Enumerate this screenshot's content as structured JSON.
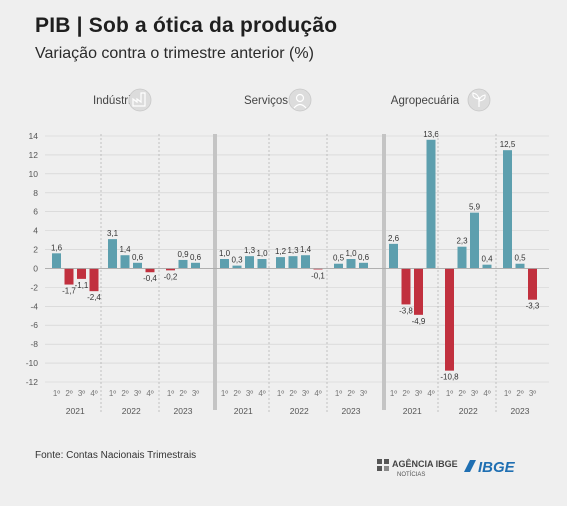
{
  "title": "PIB | Sob a ótica da produção",
  "subtitle": "Variação contra o trimestre anterior (%)",
  "source": "Fonte: Contas Nacionais Trimestrais",
  "logos": {
    "agencia_line1": "AGÊNCIA IBGE",
    "agencia_line2": "NOTÍCIAS",
    "ibge": "IBGE"
  },
  "icons": [
    "factory-icon",
    "worker-icon",
    "plant-icon"
  ],
  "colors": {
    "positive": "#5d9fae",
    "negative": "#c1303e",
    "grid": "#cfcfcf",
    "separator": "#c4c4c4",
    "text": "#555555"
  },
  "chart_data": {
    "type": "bar",
    "ylim": [
      -12,
      14
    ],
    "yticks": [
      14,
      12,
      10,
      8,
      6,
      4,
      2,
      0,
      -2,
      -4,
      -6,
      -8,
      -10,
      -12
    ],
    "groups": [
      {
        "name": "Indústria",
        "years": [
          {
            "year": "2021",
            "quarters": [
              "1º",
              "2º",
              "3º",
              "4º"
            ],
            "values": [
              1.6,
              -1.7,
              -1.1,
              -2.4
            ],
            "labels": [
              "1,6",
              "-1,7",
              "-1,1",
              "-2,4"
            ]
          },
          {
            "year": "2022",
            "quarters": [
              "1º",
              "2º",
              "3º",
              "4º"
            ],
            "values": [
              3.1,
              1.4,
              0.6,
              -0.4
            ],
            "labels": [
              "3,1",
              "1,4",
              "0,6",
              "-0,4"
            ]
          },
          {
            "year": "2023",
            "quarters": [
              "1º",
              "2º",
              "3º"
            ],
            "values": [
              -0.2,
              0.9,
              0.6
            ],
            "labels": [
              "-0,2",
              "0,9",
              "0,6"
            ]
          }
        ]
      },
      {
        "name": "Serviços",
        "years": [
          {
            "year": "2021",
            "quarters": [
              "1º",
              "2º",
              "3º",
              "4º"
            ],
            "values": [
              1.0,
              0.3,
              1.3,
              1.0
            ],
            "labels": [
              "1,0",
              "0,3",
              "1,3",
              "1,0"
            ]
          },
          {
            "year": "2022",
            "quarters": [
              "1º",
              "2º",
              "3º",
              "4º"
            ],
            "values": [
              1.2,
              1.3,
              1.4,
              -0.1
            ],
            "labels": [
              "1,2",
              "1,3",
              "1,4",
              "-0,1"
            ]
          },
          {
            "year": "2023",
            "quarters": [
              "1º",
              "2º",
              "3º"
            ],
            "values": [
              0.5,
              1.0,
              0.6
            ],
            "labels": [
              "0,5",
              "1,0",
              "0,6"
            ]
          }
        ]
      },
      {
        "name": "Agropecuária",
        "years": [
          {
            "year": "2021",
            "quarters": [
              "1º",
              "2º",
              "3º",
              "4º"
            ],
            "values": [
              2.6,
              -3.8,
              -4.9,
              13.6
            ],
            "labels": [
              "2,6",
              "-3,8",
              "-4,9",
              "13,6"
            ]
          },
          {
            "year": "2022",
            "quarters": [
              "1º",
              "2º",
              "3º",
              "4º"
            ],
            "values": [
              -10.8,
              2.3,
              5.9,
              0.4
            ],
            "labels": [
              "-10,8",
              "2,3",
              "5,9",
              "0,4"
            ]
          },
          {
            "year": "2023",
            "quarters": [
              "1º",
              "2º",
              "3º"
            ],
            "values": [
              12.5,
              0.5,
              -3.3
            ],
            "labels": [
              "12,5",
              "0,5",
              "-3,3"
            ]
          }
        ]
      }
    ]
  }
}
